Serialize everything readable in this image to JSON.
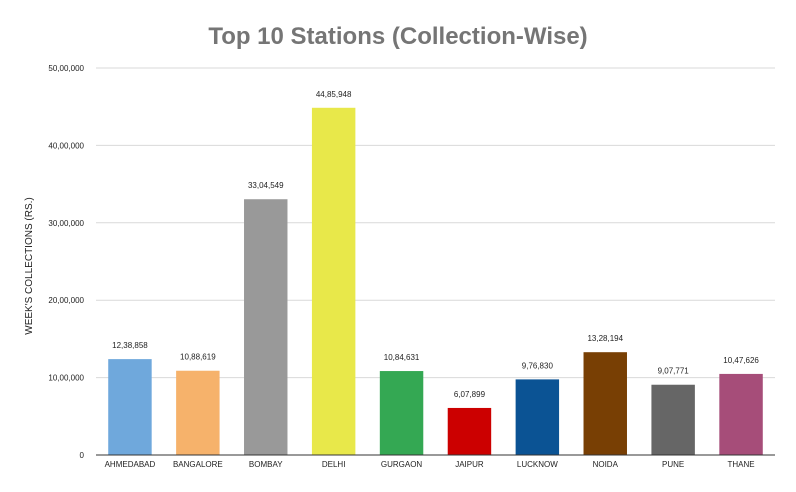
{
  "chart_data": {
    "type": "bar",
    "title": "Top 10 Stations (Collection-Wise)",
    "xlabel": "",
    "ylabel": "WEEK'S COLLECTIONS (RS.)",
    "ylim": [
      0,
      5000000
    ],
    "yticks": [
      {
        "value": 0,
        "label": "0"
      },
      {
        "value": 1000000,
        "label": "10,00,000"
      },
      {
        "value": 2000000,
        "label": "20,00,000"
      },
      {
        "value": 3000000,
        "label": "30,00,000"
      },
      {
        "value": 4000000,
        "label": "40,00,000"
      },
      {
        "value": 5000000,
        "label": "50,00,000"
      }
    ],
    "grid": true,
    "legend": "none",
    "categories": [
      "AHMEDABAD",
      "BANGALORE",
      "BOMBAY",
      "DELHI",
      "GURGAON",
      "JAIPUR",
      "LUCKNOW",
      "NOIDA",
      "PUNE",
      "THANE"
    ],
    "values": [
      1238858,
      1088619,
      3304549,
      4485948,
      1084631,
      607899,
      976830,
      1328194,
      907771,
      1047626
    ],
    "data_labels": [
      "12,38,858",
      "10,88,619",
      "33,04,549",
      "44,85,948",
      "10,84,631",
      "6,07,899",
      "9,76,830",
      "13,28,194",
      "9,07,771",
      "10,47,626"
    ],
    "colors": [
      "#6fa8dc",
      "#f6b26b",
      "#999999",
      "#e8e84a",
      "#34a853",
      "#cc0000",
      "#0b5394",
      "#783f04",
      "#666666",
      "#a64d79"
    ]
  }
}
